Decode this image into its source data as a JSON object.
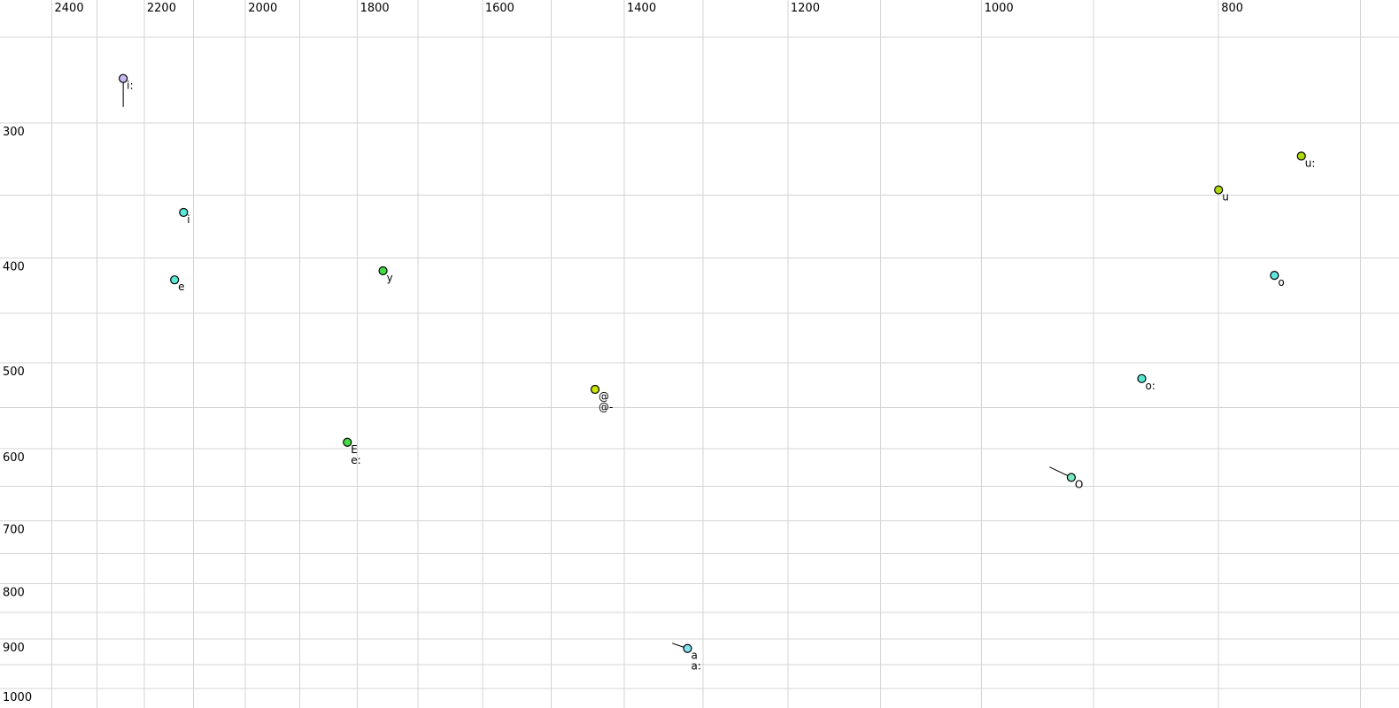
{
  "chart_data": {
    "type": "scatter",
    "title": "",
    "description_labels_visible": [
      "i:",
      "i",
      "e",
      "y",
      "E",
      "e:",
      "@",
      "@-",
      "u:",
      "u",
      "o",
      "o:",
      "O",
      "a",
      "a:"
    ],
    "background": "#ffffff",
    "grid": true,
    "grid_color": "#d4d4d4",
    "x_axis": {
      "position": "top",
      "scale": "log",
      "direction": "decreasing-right",
      "range_hz": [
        2520,
        675
      ],
      "tick_labels": [
        "2400",
        "2200",
        "2000",
        "1800",
        "1600",
        "1400",
        "1200",
        "1000",
        "800"
      ],
      "tick_values": [
        2400,
        2200,
        2000,
        1800,
        1600,
        1400,
        1200,
        1000,
        800
      ],
      "grid_interval_hz": 100,
      "grid_min_hz": 700,
      "grid_max_hz": 2400
    },
    "y_axis": {
      "position": "left",
      "scale": "log",
      "direction": "increasing-down",
      "range_hz": [
        231,
        1042
      ],
      "tick_labels": [
        "300",
        "400",
        "500",
        "600",
        "700",
        "800",
        "900",
        "1000"
      ],
      "tick_values": [
        300,
        400,
        500,
        600,
        700,
        800,
        900,
        1000
      ],
      "grid_interval_hz": 50,
      "grid_min_hz": 250,
      "grid_max_hz": 1000
    },
    "points": [
      {
        "labels": [
          "i:"
        ],
        "f2": 2244,
        "f1": 273,
        "color": "#c9b9f1",
        "trail": {
          "f2": 2244,
          "f1": 290
        }
      },
      {
        "labels": [
          "i"
        ],
        "f2": 2120,
        "f1": 363,
        "color": "#5be6d5"
      },
      {
        "labels": [
          "e"
        ],
        "f2": 2138,
        "f1": 419,
        "color": "#5be6d5"
      },
      {
        "labels": [
          "y"
        ],
        "f2": 1757,
        "f1": 411,
        "color": "#44dd44"
      },
      {
        "labels": [
          "E",
          "e:"
        ],
        "f2": 1817,
        "f1": 592,
        "color": "#44dd44"
      },
      {
        "labels": [
          "@",
          "@-"
        ],
        "f2": 1439,
        "f1": 529,
        "color": "#cbe402"
      },
      {
        "labels": [
          "u:"
        ],
        "f2": 740,
        "f1": 322,
        "color": "#abd90e"
      },
      {
        "labels": [
          "u"
        ],
        "f2": 800,
        "f1": 346,
        "color": "#abd90e"
      },
      {
        "labels": [
          "o"
        ],
        "f2": 759,
        "f1": 415,
        "color": "#5fe8e2"
      },
      {
        "labels": [
          "o:"
        ],
        "f2": 860,
        "f1": 517,
        "color": "#54e6cf"
      },
      {
        "labels": [
          "O"
        ],
        "f2": 919,
        "f1": 638,
        "color": "#76e9bd",
        "trail": {
          "f2": 938,
          "f1": 624
        }
      },
      {
        "labels": [
          "a",
          "a:"
        ],
        "f2": 1319,
        "f1": 918,
        "color": "#83e1f2",
        "trail": {
          "f2": 1338,
          "f1": 908
        }
      }
    ],
    "marker": {
      "radius_px": 4.5,
      "stroke_color": "#000000"
    }
  }
}
